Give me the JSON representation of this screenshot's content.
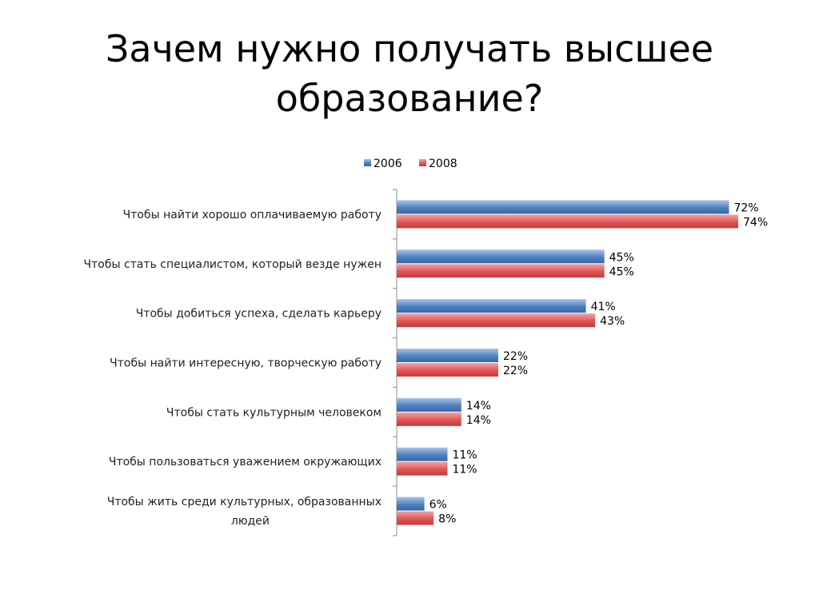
{
  "title": [
    "Зачем нужно получать высшее",
    "образование?"
  ],
  "chart_data": {
    "type": "bar",
    "orientation": "horizontal",
    "categories": [
      [
        "Чтобы найти хорошо оплачиваемую работу"
      ],
      [
        "Чтобы стать специалистом, который везде нужен"
      ],
      [
        "Чтобы добиться успеха, сделать карьеру"
      ],
      [
        "Чтобы найти интересную, творческую работу"
      ],
      [
        "Чтобы стать культурным человеком"
      ],
      [
        "Чтобы пользоваться уважением окружающих"
      ],
      [
        "Чтобы жить среди культурных, образованных",
        "людей"
      ]
    ],
    "series": [
      {
        "name": "2006",
        "color": "#4f81bd",
        "values": [
          72,
          45,
          41,
          22,
          14,
          11,
          6
        ]
      },
      {
        "name": "2008",
        "color": "#e05555",
        "values": [
          74,
          45,
          43,
          22,
          14,
          11,
          8
        ]
      }
    ],
    "value_suffix": "%",
    "xlim": [
      0,
      75
    ],
    "legend_position": "top",
    "grid": false
  }
}
